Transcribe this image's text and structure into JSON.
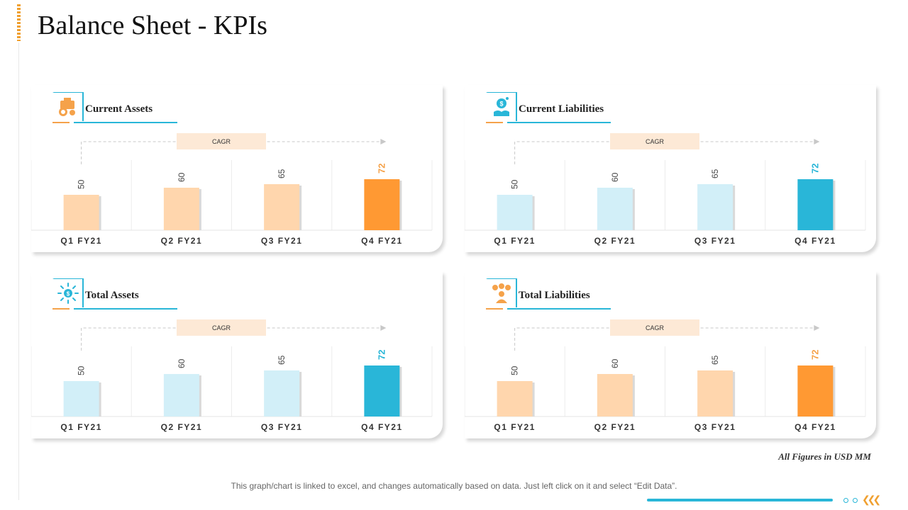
{
  "title": "Balance Sheet - KPIs",
  "colors": {
    "orange": "#ff9933",
    "orange_light": "#ffd6ad",
    "orange_label": "#f5a24a",
    "blue": "#29b6d8",
    "blue_light": "#d2eff8",
    "cagr_fill": "#fde9d6"
  },
  "chart_data": [
    {
      "type": "bar",
      "title": "Current Assets",
      "icon": "money-bag-coins-icon",
      "theme": "orange",
      "cagr_label": "CAGR",
      "categories": [
        "Q1 FY21",
        "Q2 FY21",
        "Q3 FY21",
        "Q4 FY21"
      ],
      "values": [
        50,
        60,
        65,
        72
      ],
      "ylim": [
        0,
        100
      ]
    },
    {
      "type": "bar",
      "title": "Current Liabilities",
      "icon": "hand-holding-money-icon",
      "theme": "blue",
      "cagr_label": "CAGR",
      "categories": [
        "Q1 FY21",
        "Q2 FY21",
        "Q3 FY21",
        "Q4 FY21"
      ],
      "values": [
        50,
        60,
        65,
        72
      ],
      "ylim": [
        0,
        100
      ]
    },
    {
      "type": "bar",
      "title": "Total Assets",
      "icon": "dollar-sun-icon",
      "theme": "blue",
      "cagr_label": "CAGR",
      "categories": [
        "Q1 FY21",
        "Q2 FY21",
        "Q3 FY21",
        "Q4 FY21"
      ],
      "values": [
        50,
        60,
        65,
        72
      ],
      "ylim": [
        0,
        100
      ]
    },
    {
      "type": "bar",
      "title": "Total Liabilities",
      "icon": "person-money-icon",
      "theme": "orange",
      "cagr_label": "CAGR",
      "categories": [
        "Q1 FY21",
        "Q2 FY21",
        "Q3 FY21",
        "Q4 FY21"
      ],
      "values": [
        50,
        60,
        65,
        72
      ],
      "ylim": [
        0,
        100
      ]
    }
  ],
  "footnote": "All Figures in USD MM",
  "note": "This graph/chart is linked to excel, and changes automatically based on data. Just left click on it and select “Edit Data”."
}
